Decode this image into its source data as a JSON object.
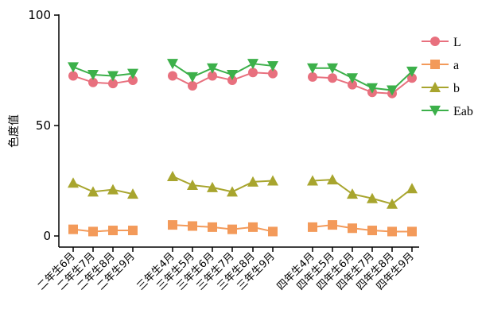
{
  "chart_data": {
    "type": "line",
    "title": "",
    "xlabel": "",
    "ylabel": "色度值",
    "ylim": [
      0,
      100
    ],
    "yticks": [
      0,
      50,
      100
    ],
    "grid": false,
    "legend_position": "right",
    "groups": [
      {
        "categories": [
          "二年生6月",
          "二年生7月",
          "二年生8月",
          "二年生9月"
        ]
      },
      {
        "categories": [
          "三年生4月",
          "三年生5月",
          "三年生6月",
          "三年生7月",
          "三年生8月",
          "三年生9月"
        ]
      },
      {
        "categories": [
          "四年生4月",
          "四年生5月",
          "四年生6月",
          "四年生7月",
          "四年生8月",
          "四年生9月"
        ]
      }
    ],
    "series": [
      {
        "name": "L",
        "color": "#e8707e",
        "marker": "circle",
        "values": [
          [
            72.5,
            69.5,
            69,
            70.5
          ],
          [
            72.5,
            68,
            72.5,
            70.5,
            74,
            73.5
          ],
          [
            72,
            71.5,
            68.5,
            65,
            64.5,
            71.5
          ]
        ]
      },
      {
        "name": "a",
        "color": "#f39a5a",
        "marker": "square",
        "values": [
          [
            3,
            2,
            2.5,
            2.5
          ],
          [
            5,
            4.5,
            4,
            3,
            4,
            2
          ],
          [
            4,
            5,
            3.5,
            2.5,
            2,
            2
          ]
        ]
      },
      {
        "name": "b",
        "color": "#a8a52e",
        "marker": "triangle-up",
        "values": [
          [
            24,
            20,
            21,
            19
          ],
          [
            27,
            23,
            22,
            20,
            24.5,
            25
          ],
          [
            25,
            25.5,
            19,
            17,
            14.5,
            21.5
          ]
        ]
      },
      {
        "name": "Eab",
        "color": "#3cb04a",
        "marker": "triangle-down",
        "values": [
          [
            76.5,
            73,
            72.5,
            73.5
          ],
          [
            78,
            72,
            76,
            73,
            78,
            77
          ],
          [
            76,
            76,
            71.5,
            67,
            66,
            74.5
          ]
        ]
      }
    ]
  }
}
